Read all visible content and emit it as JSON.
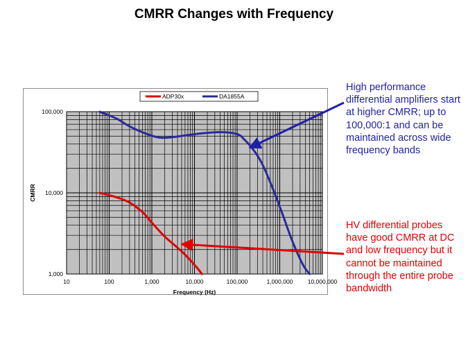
{
  "slide": {
    "title": "CMRR Changes with Frequency"
  },
  "callouts": {
    "blue": {
      "text": "High performance differential amplifiers start at higher CMRR; up to 100,000:1 and can be maintained across wide frequency bands",
      "color": "#1f1faa"
    },
    "red": {
      "text": "HV differential probes have good CMRR at DC and low frequency but it cannot be maintained through the entire probe bandwidth",
      "color": "#e00000"
    }
  },
  "chart_data": {
    "type": "line",
    "title": "",
    "xlabel": "Frequency (Hz)",
    "ylabel": "CMRR",
    "xscale": "log",
    "yscale": "log",
    "xlim": [
      10,
      10000000
    ],
    "ylim": [
      1000,
      100000
    ],
    "grid": true,
    "plot_background": "#c0c0c0",
    "x_ticks": [
      10,
      100,
      1000,
      10000,
      100000,
      1000000,
      10000000
    ],
    "x_tick_labels": [
      "10",
      "100",
      "1,000",
      "10,000",
      "100,000",
      "1,000,000",
      "10,000,000"
    ],
    "y_ticks": [
      1000,
      10000,
      100000
    ],
    "y_tick_labels": [
      "1,000",
      "10,000",
      "100,000"
    ],
    "legend_position": "top-center",
    "series": [
      {
        "name": "ADP30x",
        "color": "#e00000",
        "x": [
          60,
          150,
          300,
          600,
          1000,
          2000,
          5000,
          10000,
          15000
        ],
        "y": [
          10000,
          8800,
          7600,
          5800,
          4300,
          2900,
          1900,
          1300,
          1000
        ]
      },
      {
        "name": "DA1855A",
        "color": "#2a2a9a",
        "x": [
          60,
          150,
          300,
          700,
          1500,
          3000,
          6000,
          15000,
          40000,
          100000,
          150000,
          250000,
          400000,
          700000,
          1200000,
          2000000,
          3500000,
          5000000
        ],
        "y": [
          100000,
          82000,
          66000,
          54000,
          48000,
          48500,
          51000,
          54000,
          56000,
          53000,
          45000,
          33000,
          22000,
          11000,
          5200,
          2500,
          1300,
          1000
        ]
      }
    ]
  }
}
